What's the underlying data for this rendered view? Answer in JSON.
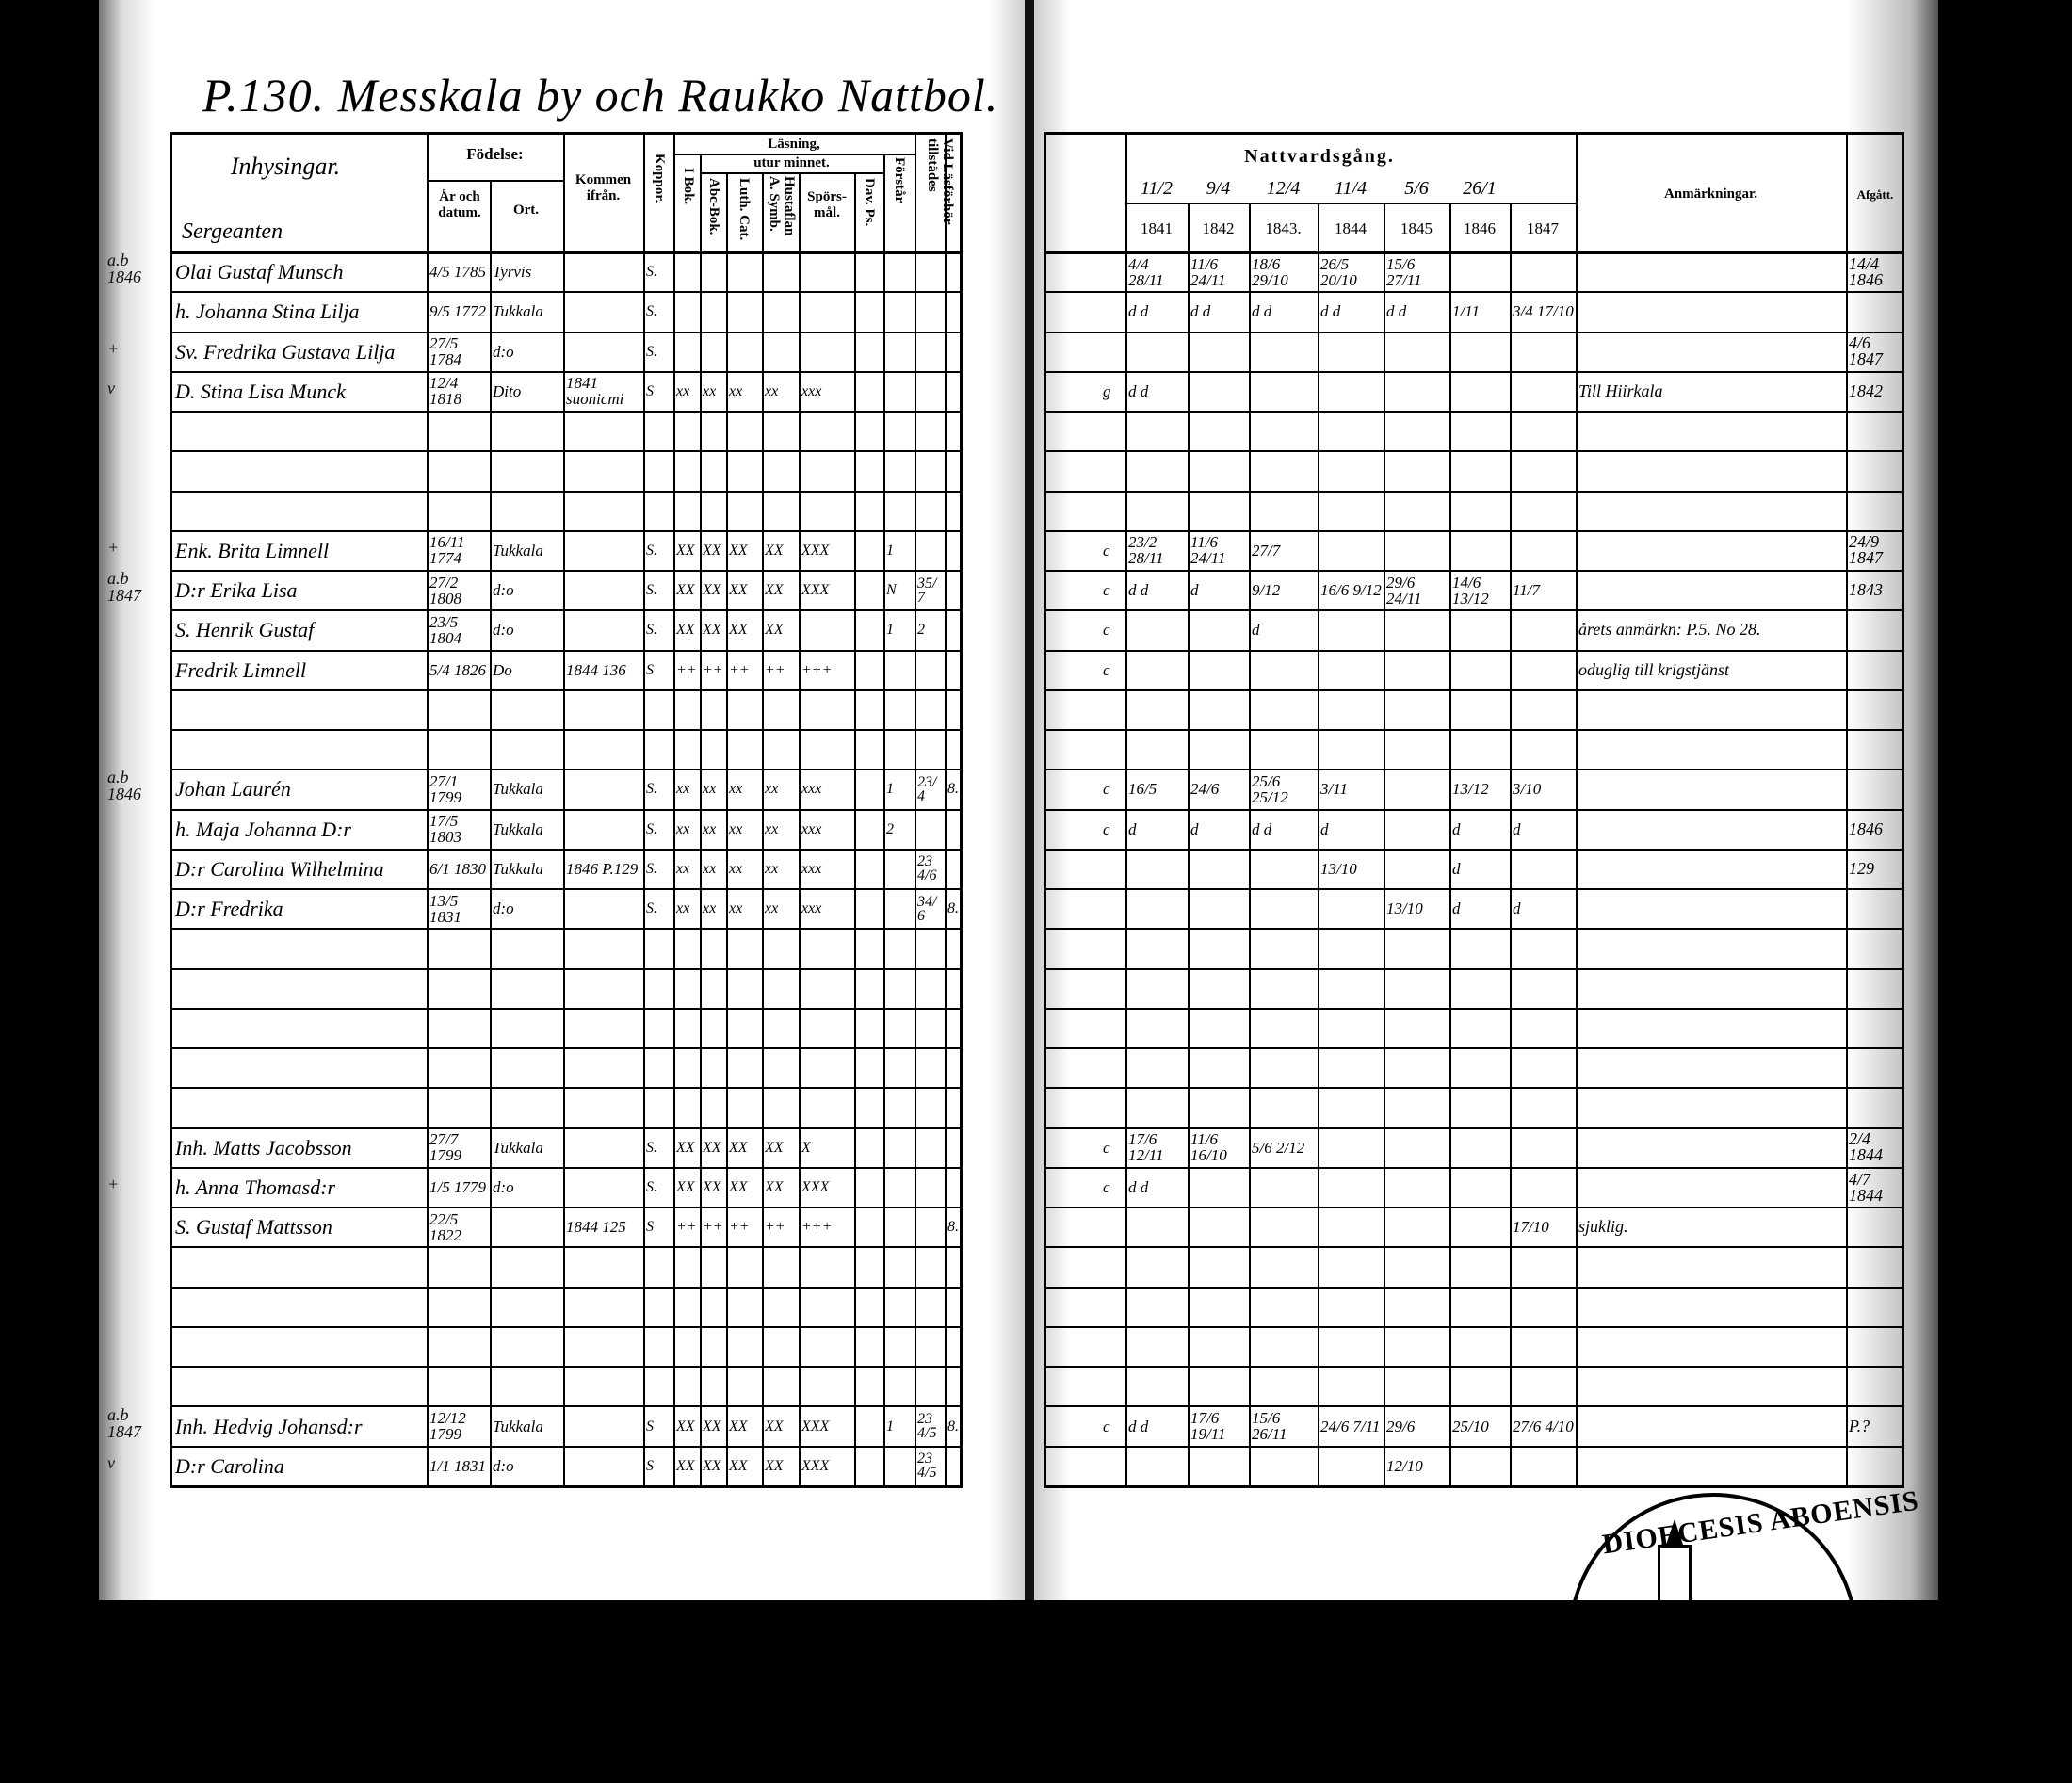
{
  "title": "P.130. Messkala by och Raukko Nattbol.",
  "left_header": {
    "inhysingar": "Inhysingar.",
    "subheading": "Sergeanten",
    "fodelse": "Födelse:",
    "ar_och_datum": "År och datum.",
    "ort": "Ort.",
    "kommen_ifran": "Kommen ifrån.",
    "koppor": "Koppor.",
    "lasning": "Läsning,",
    "i_bok": "I Bok.",
    "utur_minnet": "utur minnet.",
    "abc_bok": "Abc-Bok.",
    "luth_cat": "Luth. Cat.",
    "hustaflan": "Hustaflan A. Symb.",
    "sporsmal": "Spörs-mål.",
    "dav_ps": "Dav. Ps.",
    "forstar": "Förstår",
    "vid_lasforhor": "Vid Läsförhör tillstädes"
  },
  "right_header": {
    "nattvardsgang": "Nattvardsgång.",
    "dates": [
      "11/2",
      "9/4",
      "12/4",
      "11/4",
      "5/6",
      "26/1",
      ""
    ],
    "years": [
      "1841",
      "1842",
      "1843.",
      "1844",
      "1845",
      "1846",
      "1847"
    ],
    "anmarkningar": "Anmärkningar.",
    "afgatt": "Afgått."
  },
  "left_rows": [
    {
      "margin": "a.b 1846",
      "cells": [
        "Olai Gustaf Munsch",
        "4/5 1785",
        "Tyrvis",
        "",
        "S.",
        "",
        "",
        "",
        "",
        "",
        "",
        "",
        "",
        ""
      ]
    },
    {
      "margin": "",
      "cells": [
        "h. Johanna Stina Lilja",
        "9/5 1772",
        "Tukkala",
        "",
        "S.",
        "",
        "",
        "",
        "",
        "",
        "",
        "",
        "",
        ""
      ]
    },
    {
      "margin": "+",
      "cells": [
        "Sv. Fredrika Gustava Lilja",
        "27/5 1784",
        "d:o",
        "",
        "S.",
        "",
        "",
        "",
        "",
        "",
        "",
        "",
        "",
        ""
      ]
    },
    {
      "margin": "v",
      "cells": [
        "D. Stina Lisa Munck",
        "12/4 1818",
        "Dito",
        "1841 suonicmi",
        "S",
        "xx",
        "xx",
        "xx",
        "xx",
        "xxx",
        "",
        "",
        "",
        ""
      ]
    },
    {
      "margin": "",
      "cells": []
    },
    {
      "margin": "",
      "cells": []
    },
    {
      "margin": "",
      "cells": []
    },
    {
      "margin": "+",
      "cells": [
        "Enk. Brita Limnell",
        "16/11 1774",
        "Tukkala",
        "",
        "S.",
        "XX",
        "XX",
        "XX",
        "XX",
        "XXX",
        "",
        "1",
        "",
        ""
      ]
    },
    {
      "margin": "a.b 1847",
      "cells": [
        "D:r Erika Lisa",
        "27/2 1808",
        "d:o",
        "",
        "S.",
        "XX",
        "XX",
        "XX",
        "XX",
        "XXX",
        "",
        "N",
        "35/7",
        ""
      ]
    },
    {
      "margin": "",
      "cells": [
        "S. Henrik Gustaf",
        "23/5 1804",
        "d:o",
        "",
        "S.",
        "XX",
        "XX",
        "XX",
        "XX",
        "",
        "",
        "1",
        "2",
        ""
      ]
    },
    {
      "margin": "",
      "cells": [
        "Fredrik Limnell",
        "5/4 1826",
        "Do",
        "1844 136",
        "S",
        "++",
        "++",
        "++",
        "++",
        "+++",
        "",
        "",
        "",
        ""
      ]
    },
    {
      "margin": "",
      "cells": []
    },
    {
      "margin": "",
      "cells": []
    },
    {
      "margin": "a.b 1846",
      "cells": [
        "Johan Laurén",
        "27/1 1799",
        "Tukkala",
        "",
        "S.",
        "xx",
        "xx",
        "xx",
        "xx",
        "xxx",
        "",
        "1",
        "23/4",
        "8."
      ]
    },
    {
      "margin": "",
      "cells": [
        "h. Maja Johanna D:r",
        "17/5 1803",
        "Tukkala",
        "",
        "S.",
        "xx",
        "xx",
        "xx",
        "xx",
        "xxx",
        "",
        "2",
        "",
        ""
      ]
    },
    {
      "margin": "",
      "cells": [
        "D:r Carolina Wilhelmina",
        "6/1 1830",
        "Tukkala",
        "1846 P.129",
        "S.",
        "xx",
        "xx",
        "xx",
        "xx",
        "xxx",
        "",
        "",
        "234/6",
        ""
      ]
    },
    {
      "margin": "",
      "cells": [
        "D:r Fredrika",
        "13/5 1831",
        "d:o",
        "",
        "S.",
        "xx",
        "xx",
        "xx",
        "xx",
        "xxx",
        "",
        "",
        "34/6",
        "8."
      ]
    },
    {
      "margin": "",
      "cells": []
    },
    {
      "margin": "",
      "cells": []
    },
    {
      "margin": "",
      "cells": []
    },
    {
      "margin": "",
      "cells": []
    },
    {
      "margin": "",
      "cells": []
    },
    {
      "margin": "",
      "cells": [
        "Inh. Matts Jacobsson",
        "27/7 1799",
        "Tukkala",
        "",
        "S.",
        "XX",
        "XX",
        "XX",
        "XX",
        "X",
        "",
        "",
        "",
        ""
      ]
    },
    {
      "margin": "+",
      "cells": [
        "h. Anna Thomasd:r",
        "1/5 1779",
        "d:o",
        "",
        "S.",
        "XX",
        "XX",
        "XX",
        "XX",
        "XXX",
        "",
        "",
        "",
        ""
      ]
    },
    {
      "margin": "",
      "cells": [
        "S. Gustaf Mattsson",
        "22/5 1822",
        "",
        "1844 125",
        "S",
        "++",
        "++",
        "++",
        "++",
        "+++",
        "",
        "",
        "",
        "8."
      ]
    },
    {
      "margin": "",
      "cells": []
    },
    {
      "margin": "",
      "cells": []
    },
    {
      "margin": "",
      "cells": []
    },
    {
      "margin": "",
      "cells": []
    },
    {
      "margin": "a.b 1847",
      "cells": [
        "Inh. Hedvig Johansd:r",
        "12/12 1799",
        "Tukkala",
        "",
        "S",
        "XX",
        "XX",
        "XX",
        "XX",
        "XXX",
        "",
        "1",
        "234/5",
        "8."
      ]
    },
    {
      "margin": "v",
      "cells": [
        "D:r Carolina",
        "1/1 1831",
        "d:o",
        "",
        "S",
        "XX",
        "XX",
        "XX",
        "XX",
        "XXX",
        "",
        "",
        "234/5",
        ""
      ]
    }
  ],
  "right_rows": [
    {
      "cells": [
        "",
        "4/4 28/11",
        "11/6 24/11",
        "18/6 29/10",
        "26/5 20/10",
        "15/6 27/11",
        "",
        "",
        "",
        "14/4 1846"
      ]
    },
    {
      "cells": [
        "",
        "d d",
        "d d",
        "d d",
        "d d",
        "d d",
        "1/11",
        "3/4 17/10",
        "",
        ""
      ]
    },
    {
      "cells": [
        "",
        "",
        "",
        "",
        "",
        "",
        "",
        "",
        "",
        "4/6 1847"
      ]
    },
    {
      "cells": [
        "g",
        "d d",
        "",
        "",
        "",
        "",
        "",
        "",
        "Till Hiirkala",
        "1842"
      ]
    },
    {
      "cells": []
    },
    {
      "cells": []
    },
    {
      "cells": []
    },
    {
      "cells": [
        "c",
        "23/2 28/11",
        "11/6 24/11",
        "27/7",
        "",
        "",
        "",
        "",
        "",
        "24/9 1847"
      ]
    },
    {
      "cells": [
        "c",
        "d d",
        "d",
        "9/12",
        "16/6 9/12",
        "29/6 24/11",
        "14/6 13/12",
        "11/7",
        "",
        "1843"
      ]
    },
    {
      "cells": [
        "c",
        "",
        "",
        "d",
        "",
        "",
        "",
        "",
        "årets anmärkn: P.5. No 28.",
        ""
      ]
    },
    {
      "cells": [
        "c",
        "",
        "",
        "",
        "",
        "",
        "",
        "",
        "oduglig till krigstjänst",
        ""
      ]
    },
    {
      "cells": []
    },
    {
      "cells": []
    },
    {
      "cells": [
        "c",
        "16/5",
        "24/6",
        "25/6 25/12",
        "3/11",
        "",
        "13/12",
        "3/10",
        "",
        ""
      ]
    },
    {
      "cells": [
        "c",
        "d",
        "d",
        "d d",
        "d",
        "",
        "d",
        "d",
        "",
        "1846"
      ]
    },
    {
      "cells": [
        "",
        "",
        "",
        "",
        "13/10",
        "",
        "d",
        "",
        "",
        "129"
      ]
    },
    {
      "cells": [
        "",
        "",
        "",
        "",
        "",
        "13/10",
        "d",
        "d",
        "",
        ""
      ]
    },
    {
      "cells": []
    },
    {
      "cells": []
    },
    {
      "cells": []
    },
    {
      "cells": []
    },
    {
      "cells": []
    },
    {
      "cells": [
        "c",
        "17/6 12/11",
        "11/6 16/10",
        "5/6 2/12",
        "",
        "",
        "",
        "",
        "",
        "2/4 1844"
      ]
    },
    {
      "cells": [
        "c",
        "d d",
        "",
        "",
        "",
        "",
        "",
        "",
        "",
        "4/7 1844"
      ]
    },
    {
      "cells": [
        "",
        "",
        "",
        "",
        "",
        "",
        "",
        "17/10",
        "sjuklig.",
        ""
      ]
    },
    {
      "cells": []
    },
    {
      "cells": []
    },
    {
      "cells": []
    },
    {
      "cells": []
    },
    {
      "cells": [
        "c",
        "d d",
        "17/6 19/11",
        "15/6 26/11",
        "24/6 7/11",
        "29/6",
        "25/10",
        "27/6 4/10",
        "",
        "P.?"
      ]
    },
    {
      "cells": [
        "",
        "",
        "",
        "",
        "",
        "12/10",
        "",
        "",
        "",
        ""
      ]
    }
  ],
  "stamp": "DIOECESIS ABOENSIS"
}
